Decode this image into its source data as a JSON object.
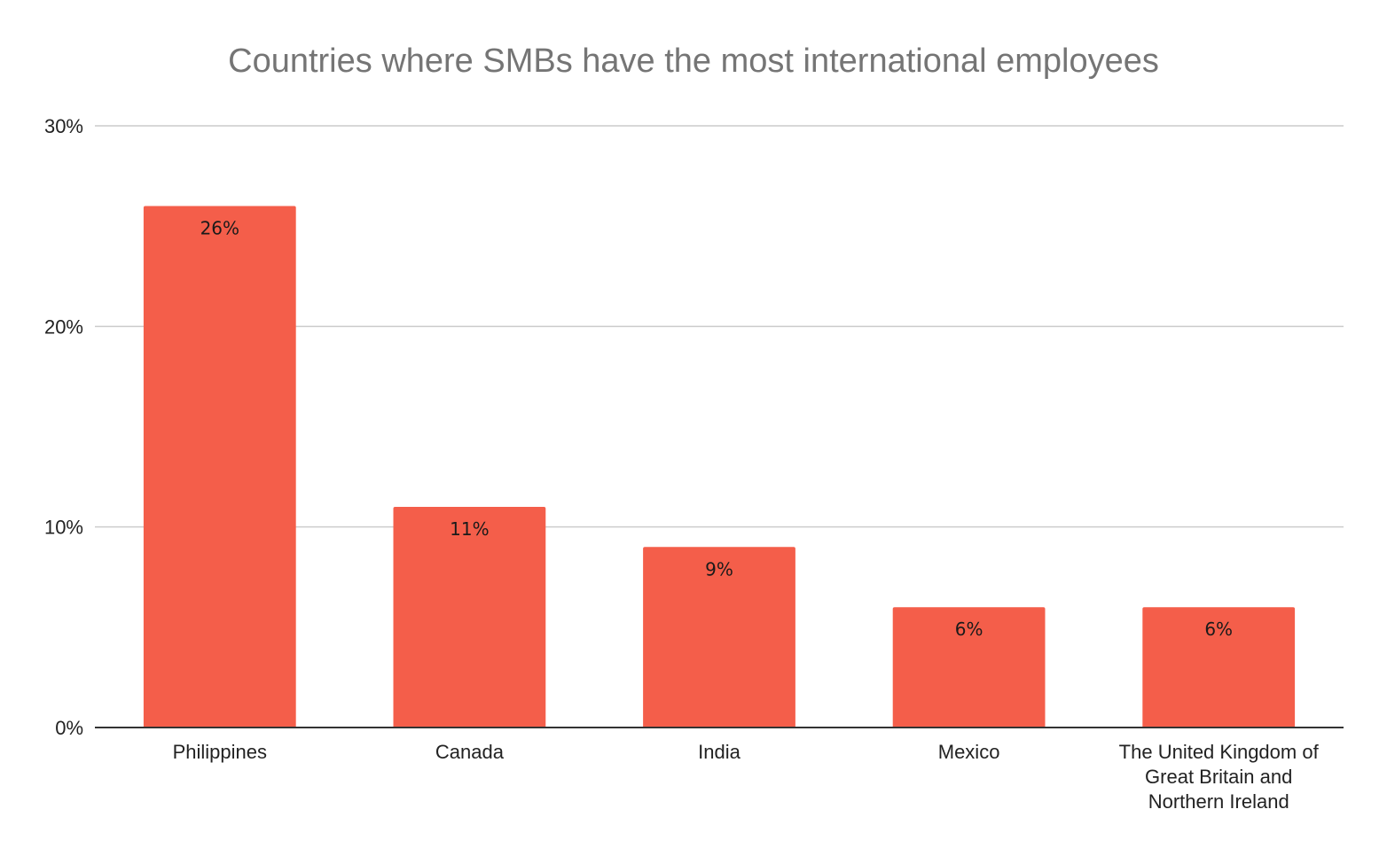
{
  "chart_data": {
    "type": "bar",
    "title": "Countries where SMBs have the most international employees",
    "categories": [
      "Philippines",
      "Canada",
      "India",
      "Mexico",
      "The United Kingdom of Great Britain and Northern Ireland"
    ],
    "category_label_lines": [
      [
        "Philippines"
      ],
      [
        "Canada"
      ],
      [
        "India"
      ],
      [
        "Mexico"
      ],
      [
        "The United Kingdom of",
        "Great Britain and",
        "Northern Ireland"
      ]
    ],
    "values": [
      26,
      11,
      9,
      6,
      6
    ],
    "data_labels": [
      "26%",
      "11%",
      "9%",
      "6%",
      "6%"
    ],
    "y_ticks": [
      0,
      10,
      20,
      30
    ],
    "y_tick_labels": [
      "0%",
      "10%",
      "20%",
      "30%"
    ],
    "ylim": [
      0,
      30
    ],
    "xlabel": "",
    "ylabel": "",
    "grid": true,
    "legend": "none",
    "bar_color": "#f45e4a"
  }
}
